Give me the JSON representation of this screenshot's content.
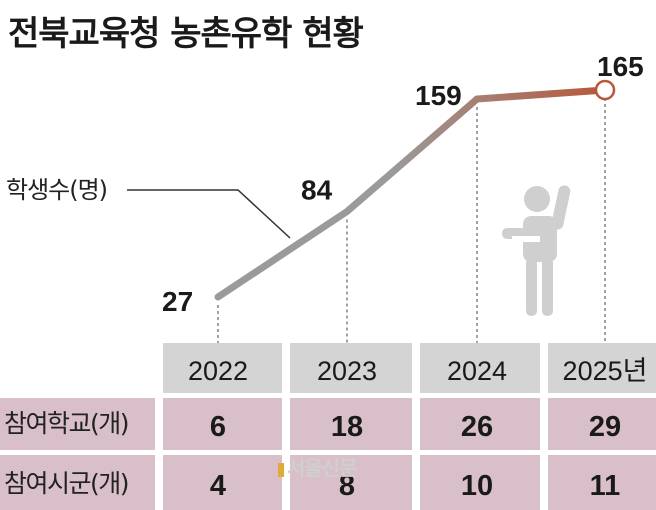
{
  "title": "전북교육청 농촌유학 현황",
  "series_label": "학생수(명)",
  "watermark": "서울신문",
  "colors": {
    "line_start": "#9a9a9a",
    "line_end": "#b8573a",
    "year_band": "#d4d4d4",
    "table_row": "#d9bfc9",
    "gridline": "#444444",
    "figure": "#cfcfcf"
  },
  "icons": {
    "figure": "person-raising-hand-icon",
    "end_marker": "open-circle-marker"
  },
  "chart_data": {
    "type": "line",
    "categories": [
      "2022",
      "2023",
      "2024",
      "2025년"
    ],
    "series": [
      {
        "name": "학생수(명)",
        "values": [
          27,
          84,
          159,
          165
        ]
      }
    ]
  },
  "table": {
    "rows": [
      {
        "label": "참여학교(개)",
        "values": [
          "6",
          "18",
          "26",
          "29"
        ]
      },
      {
        "label": "참여시군(개)",
        "values": [
          "4",
          "8",
          "10",
          "11"
        ]
      }
    ]
  }
}
